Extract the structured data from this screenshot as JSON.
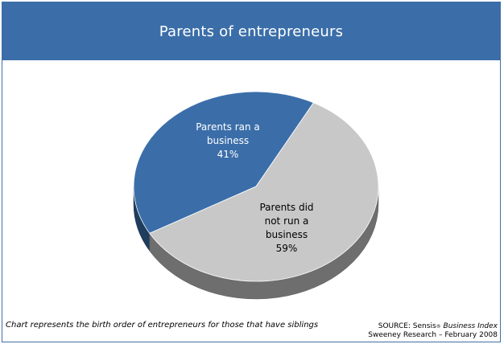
{
  "title": "Parents of entrepreneurs",
  "chart_data": {
    "type": "pie",
    "slices": [
      {
        "label_lines": [
          "Parents ran a",
          "business",
          "41%"
        ],
        "value": 41,
        "color": "#3b6ea9",
        "text_color": "#ffffff"
      },
      {
        "label_lines": [
          "Parents did",
          "not run a",
          "business",
          "59%"
        ],
        "value": 59,
        "color": "#c8c8c8",
        "text_color": "#000000"
      }
    ]
  },
  "footnote": "Chart represents the birth order of entrepreneurs for those that have siblings",
  "source": {
    "prefix": "SOURCE: Sensis",
    "reg_mark": "®",
    "italic_part": "Business Index",
    "line2": "Sweeney Research – February 2008"
  }
}
